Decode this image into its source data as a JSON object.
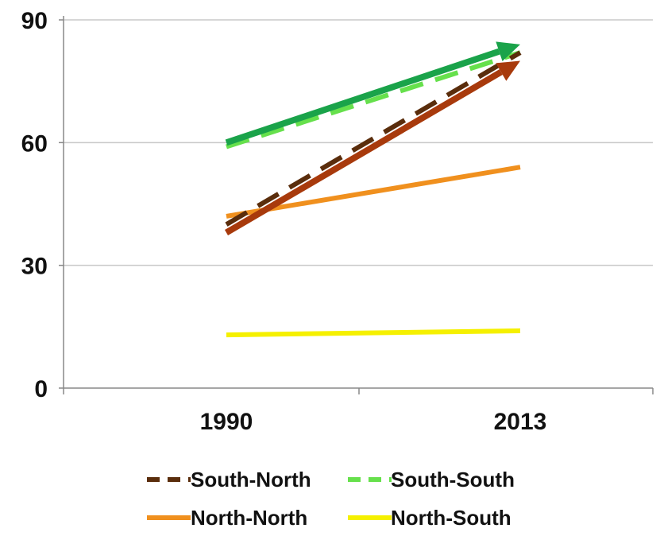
{
  "chart_data": {
    "type": "line",
    "title": "",
    "xlabel": "",
    "ylabel": "",
    "categories": [
      "1990",
      "2013"
    ],
    "ylim": [
      0,
      90
    ],
    "yticks": [
      "0",
      "30",
      "60",
      "90"
    ],
    "grid": true,
    "legend_position": "bottom",
    "series": [
      {
        "name": "South-North",
        "values": [
          40,
          82
        ],
        "color": "#5a2d0c",
        "style": "dashed"
      },
      {
        "name": "South-South",
        "values": [
          59,
          82
        ],
        "color": "#66e04c",
        "style": "dashed"
      },
      {
        "name": "North-North",
        "values": [
          42,
          54
        ],
        "color": "#f0901e",
        "style": "solid"
      },
      {
        "name": "North-South",
        "values": [
          13,
          14
        ],
        "color": "#f5f000",
        "style": "solid"
      }
    ],
    "trend_arrows": [
      {
        "values": [
          60,
          84
        ],
        "color": "#1aa34a"
      },
      {
        "values": [
          38,
          80
        ],
        "color": "#a83a0c"
      }
    ]
  }
}
